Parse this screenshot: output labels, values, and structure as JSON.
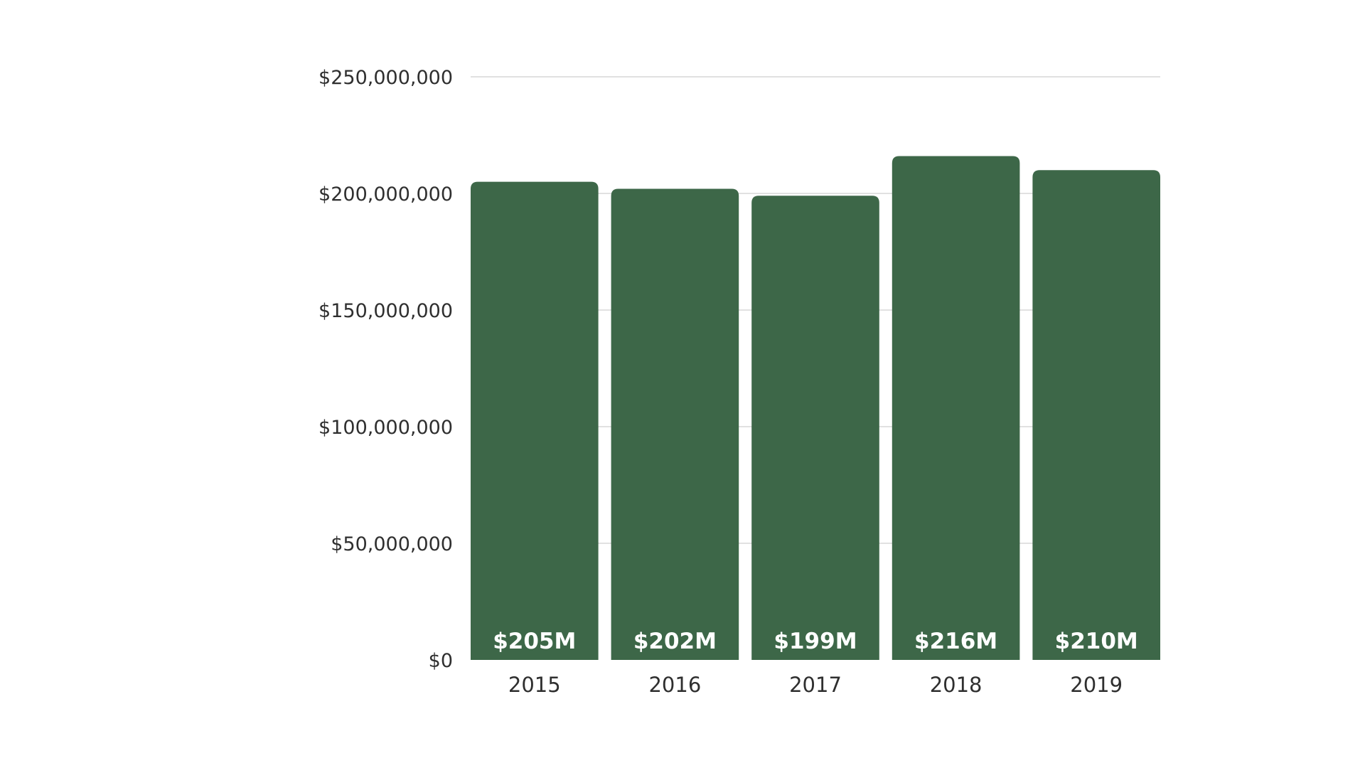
{
  "chart_data": {
    "type": "bar",
    "categories": [
      "2015",
      "2016",
      "2017",
      "2018",
      "2019"
    ],
    "values": [
      205000000,
      202000000,
      199000000,
      216000000,
      210000000
    ],
    "data_labels": [
      "$205M",
      "$202M",
      "$199M",
      "$216M",
      "$210M"
    ],
    "y_ticks": [
      {
        "value": 0,
        "label": "$0"
      },
      {
        "value": 50000000,
        "label": "$50,000,000"
      },
      {
        "value": 100000000,
        "label": "$100,000,000"
      },
      {
        "value": 150000000,
        "label": "$150,000,000"
      },
      {
        "value": 200000000,
        "label": "$200,000,000"
      },
      {
        "value": 250000000,
        "label": "$250,000,000"
      }
    ],
    "ylim": [
      0,
      250000000
    ],
    "title": "",
    "xlabel": "",
    "ylabel": "",
    "grid": true,
    "legend": "none",
    "bar_color": "#3d6748",
    "label_color": "#ffffff",
    "grid_color": "#cfcfcf"
  }
}
